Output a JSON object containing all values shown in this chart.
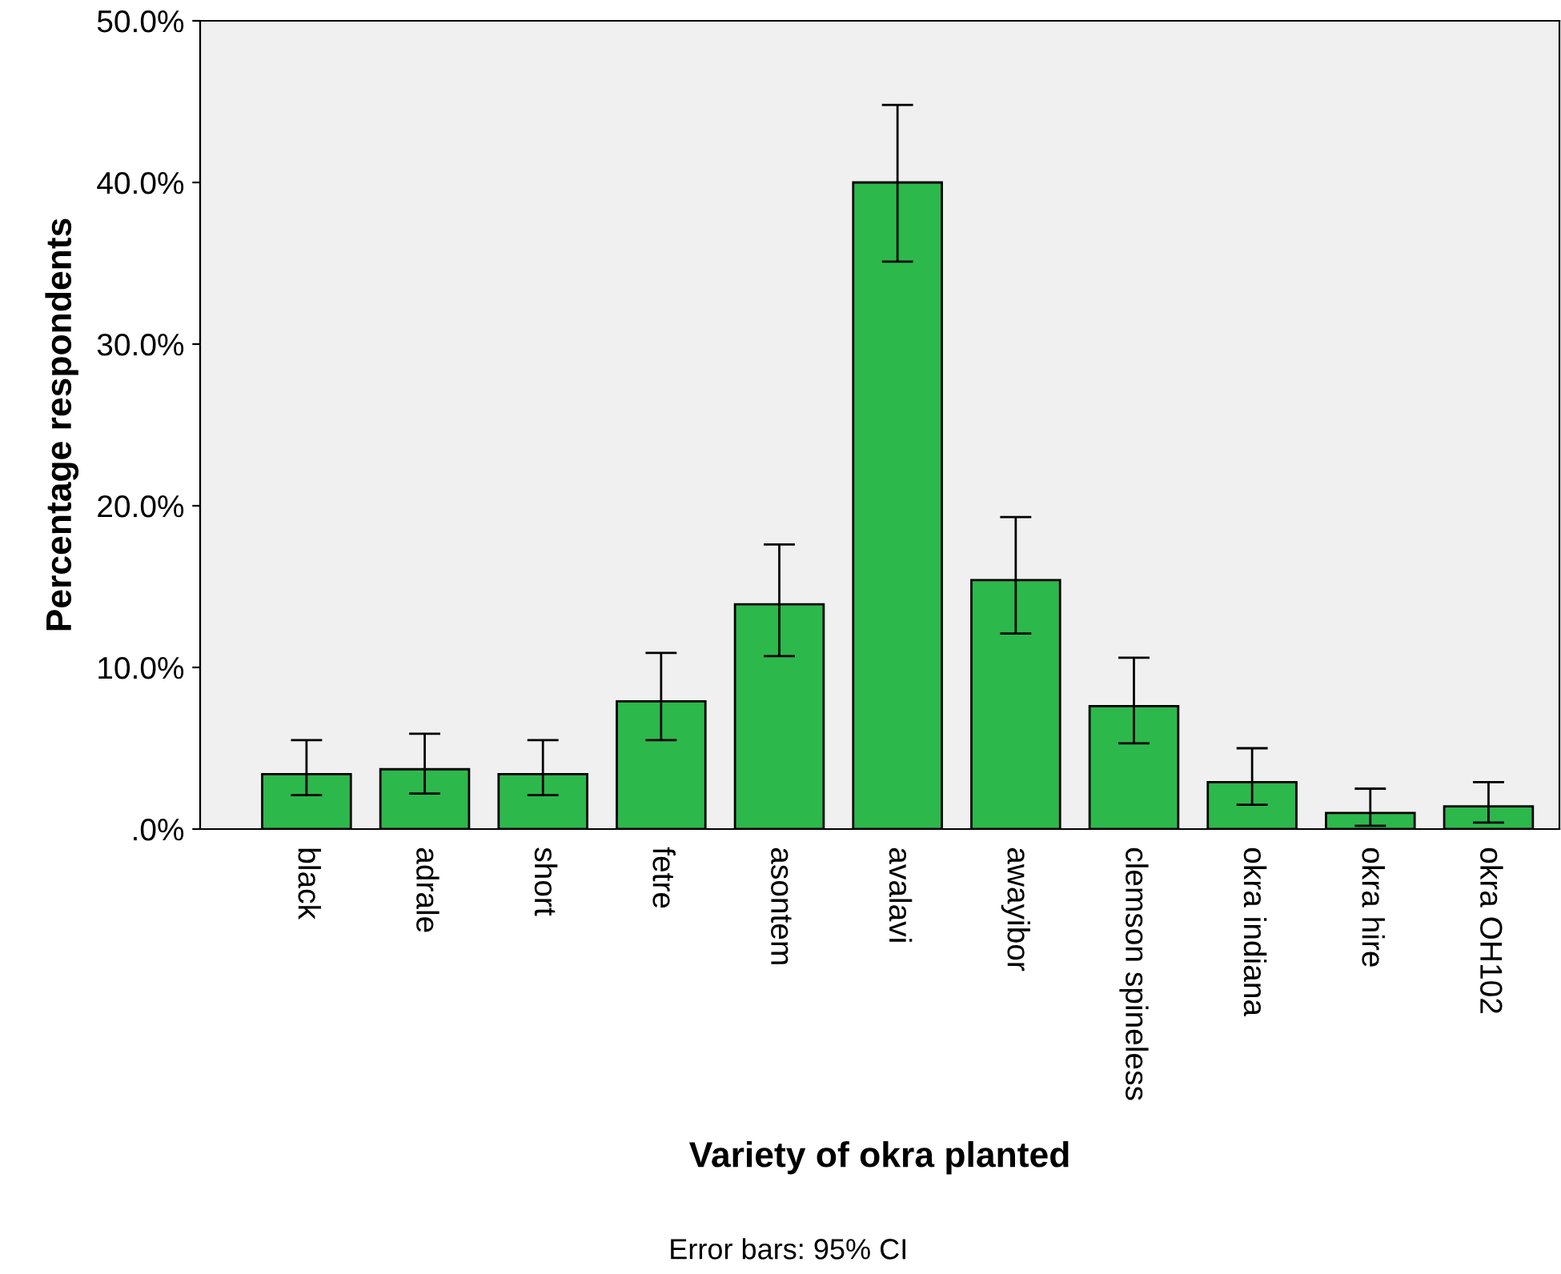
{
  "chart_data": {
    "type": "bar",
    "xlabel": "Variety of okra planted",
    "ylabel": "Percentage respondents",
    "categories": [
      "black",
      "adrale",
      "short",
      "fetre",
      "asontem",
      "avalavi",
      "awayibor",
      "clemson spineless",
      "okra indiana",
      "okra hire",
      "okra OH102"
    ],
    "values": [
      3.4,
      3.7,
      3.4,
      7.9,
      13.9,
      40.0,
      15.4,
      7.6,
      2.9,
      1.0,
      1.4
    ],
    "errors": [
      [
        2.1,
        5.5
      ],
      [
        2.2,
        5.9
      ],
      [
        2.1,
        5.5
      ],
      [
        5.5,
        10.9
      ],
      [
        10.7,
        17.6
      ],
      [
        35.1,
        44.8
      ],
      [
        12.1,
        19.3
      ],
      [
        5.3,
        10.6
      ],
      [
        1.5,
        5.0
      ],
      [
        0.2,
        2.5
      ],
      [
        0.4,
        2.9
      ]
    ],
    "color": "#2db84c",
    "ylim": [
      0,
      50
    ],
    "yticks": [
      {
        "value": 0,
        "label": ".0%"
      },
      {
        "value": 10,
        "label": "10.0%"
      },
      {
        "value": 20,
        "label": "20.0%"
      },
      {
        "value": 30,
        "label": "30.0%"
      },
      {
        "value": 40,
        "label": "40.0%"
      },
      {
        "value": 50,
        "label": "50.0%"
      }
    ],
    "annotations": [
      "Error bars: 95% CI"
    ]
  }
}
